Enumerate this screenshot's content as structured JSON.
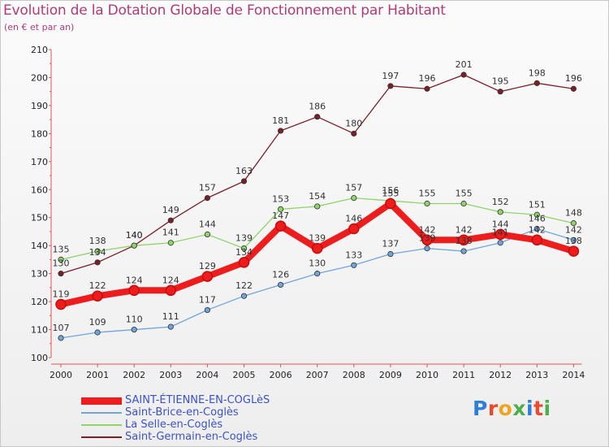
{
  "header": {
    "title": "Evolution de la Dotation Globale de Fonctionnement par Habitant",
    "subtitle": "(en € et par an)"
  },
  "logo": {
    "text": "Proxiti",
    "colors": [
      "#2f7fd8",
      "#e84c2c",
      "#f0a422",
      "#4cae4c",
      "#2f7fd8",
      "#e84c2c",
      "#4cae4c"
    ]
  },
  "chart_data": {
    "type": "line",
    "title": "Evolution de la Dotation Globale de Fonctionnement par Habitant",
    "subtitle": "(en € et par an)",
    "xlabel": "",
    "ylabel": "",
    "ylim": [
      100,
      210
    ],
    "yticks": [
      100,
      110,
      120,
      130,
      140,
      150,
      160,
      170,
      180,
      190,
      200,
      210
    ],
    "grid": false,
    "categories": [
      "2000",
      "2001",
      "2002",
      "2003",
      "2004",
      "2005",
      "2006",
      "2007",
      "2008",
      "2009",
      "2010",
      "2011",
      "2012",
      "2013",
      "2014"
    ],
    "series": [
      {
        "name": "Saint-Germain-en-Coglès",
        "color": "#7a1f26",
        "values": [
          130,
          134,
          140,
          149,
          157,
          163,
          181,
          186,
          180,
          197,
          196,
          201,
          195,
          198,
          196
        ],
        "show_labels": true,
        "emphasis": false
      },
      {
        "name": "La Selle-en-Coglès",
        "color": "#8fd36a",
        "values": [
          135,
          138,
          140,
          141,
          144,
          139,
          153,
          154,
          157,
          156,
          155,
          155,
          152,
          151,
          148
        ],
        "show_labels": true,
        "emphasis": false
      },
      {
        "name": "Saint-Brice-en-Coglès",
        "color": "#6fa5d9",
        "values": [
          107,
          109,
          110,
          111,
          117,
          122,
          126,
          130,
          133,
          137,
          139,
          138,
          141,
          146,
          142
        ],
        "show_labels": true,
        "emphasis": false
      },
      {
        "name": "SAINT-ÉTIENNE-EN-COGLèS",
        "color": "#ee1d1d",
        "values": [
          119,
          122,
          124,
          124,
          129,
          134,
          147,
          139,
          146,
          155,
          142,
          142,
          144,
          142,
          138
        ],
        "show_labels": true,
        "emphasis": true
      }
    ],
    "legend": {
      "placement": "bottom-left",
      "order": [
        "SAINT-ÉTIENNE-EN-COGLèS",
        "Saint-Brice-en-Coglès",
        "La Selle-en-Coglès",
        "Saint-Germain-en-Coglès"
      ]
    }
  }
}
